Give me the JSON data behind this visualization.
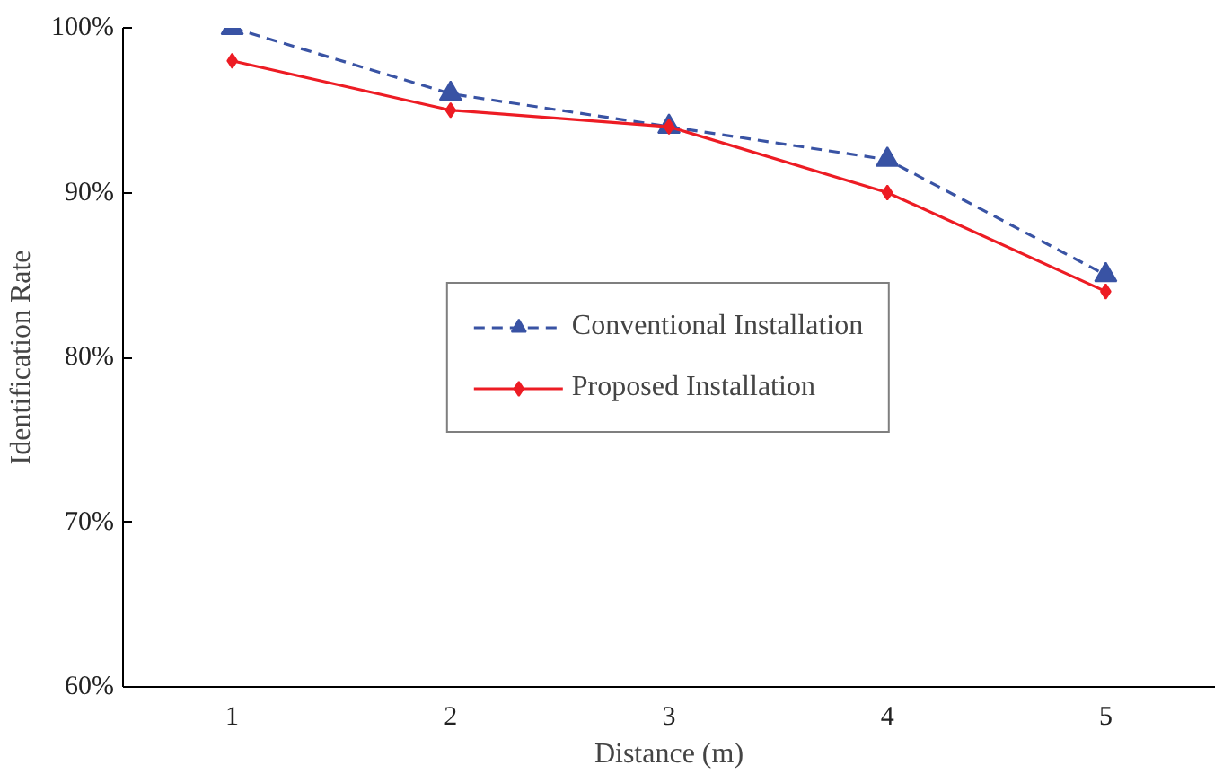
{
  "chart_data": {
    "type": "line",
    "xlabel": "Distance (m)",
    "ylabel": "Identification Rate",
    "categories": [
      "1",
      "2",
      "3",
      "4",
      "5"
    ],
    "series": [
      {
        "name": "Conventional Installation",
        "color": "#3953a4",
        "values": [
          100,
          96,
          94,
          92,
          85
        ],
        "marker": "triangle",
        "line_style": "dashed"
      },
      {
        "name": "Proposed Installation",
        "color": "#ed1c24",
        "values": [
          98,
          95,
          94,
          90,
          84
        ],
        "marker": "diamond",
        "line_style": "solid"
      }
    ],
    "ylim": [
      60,
      100
    ],
    "yticks": [
      {
        "value": 60,
        "label": "60%"
      },
      {
        "value": 70,
        "label": "70%"
      },
      {
        "value": 80,
        "label": "80%"
      },
      {
        "value": 90,
        "label": "90%"
      },
      {
        "value": 100,
        "label": "100%"
      }
    ],
    "grid": false,
    "legend": "center"
  }
}
